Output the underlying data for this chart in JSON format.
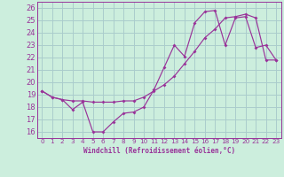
{
  "xlabel": "Windchill (Refroidissement éolien,°C)",
  "background_color": "#cceedd",
  "grid_color": "#aacccc",
  "line_color": "#993399",
  "ylim": [
    15.5,
    26.5
  ],
  "xlim": [
    -0.5,
    23.5
  ],
  "yticks": [
    16,
    17,
    18,
    19,
    20,
    21,
    22,
    23,
    24,
    25,
    26
  ],
  "xticks": [
    0,
    1,
    2,
    3,
    4,
    5,
    6,
    7,
    8,
    9,
    10,
    11,
    12,
    13,
    14,
    15,
    16,
    17,
    18,
    19,
    20,
    21,
    22,
    23
  ],
  "series1_x": [
    0,
    1,
    2,
    3,
    4,
    5,
    6,
    7,
    8,
    9,
    10,
    11,
    12,
    13,
    14,
    15,
    16,
    17,
    18,
    19,
    20,
    21,
    22,
    23
  ],
  "series1_y": [
    19.3,
    18.8,
    18.6,
    17.8,
    18.4,
    16.0,
    16.0,
    16.8,
    17.5,
    17.6,
    18.0,
    19.4,
    21.2,
    23.0,
    22.1,
    24.8,
    25.7,
    25.8,
    23.0,
    25.2,
    25.3,
    22.8,
    23.0,
    21.8
  ],
  "series2_x": [
    0,
    1,
    2,
    3,
    4,
    5,
    6,
    7,
    8,
    9,
    10,
    11,
    12,
    13,
    14,
    15,
    16,
    17,
    18,
    19,
    20,
    21,
    22,
    23
  ],
  "series2_y": [
    19.3,
    18.8,
    18.6,
    18.5,
    18.5,
    18.4,
    18.4,
    18.4,
    18.5,
    18.5,
    18.8,
    19.3,
    19.8,
    20.5,
    21.5,
    22.5,
    23.6,
    24.3,
    25.2,
    25.3,
    25.5,
    25.2,
    21.8,
    21.8
  ]
}
